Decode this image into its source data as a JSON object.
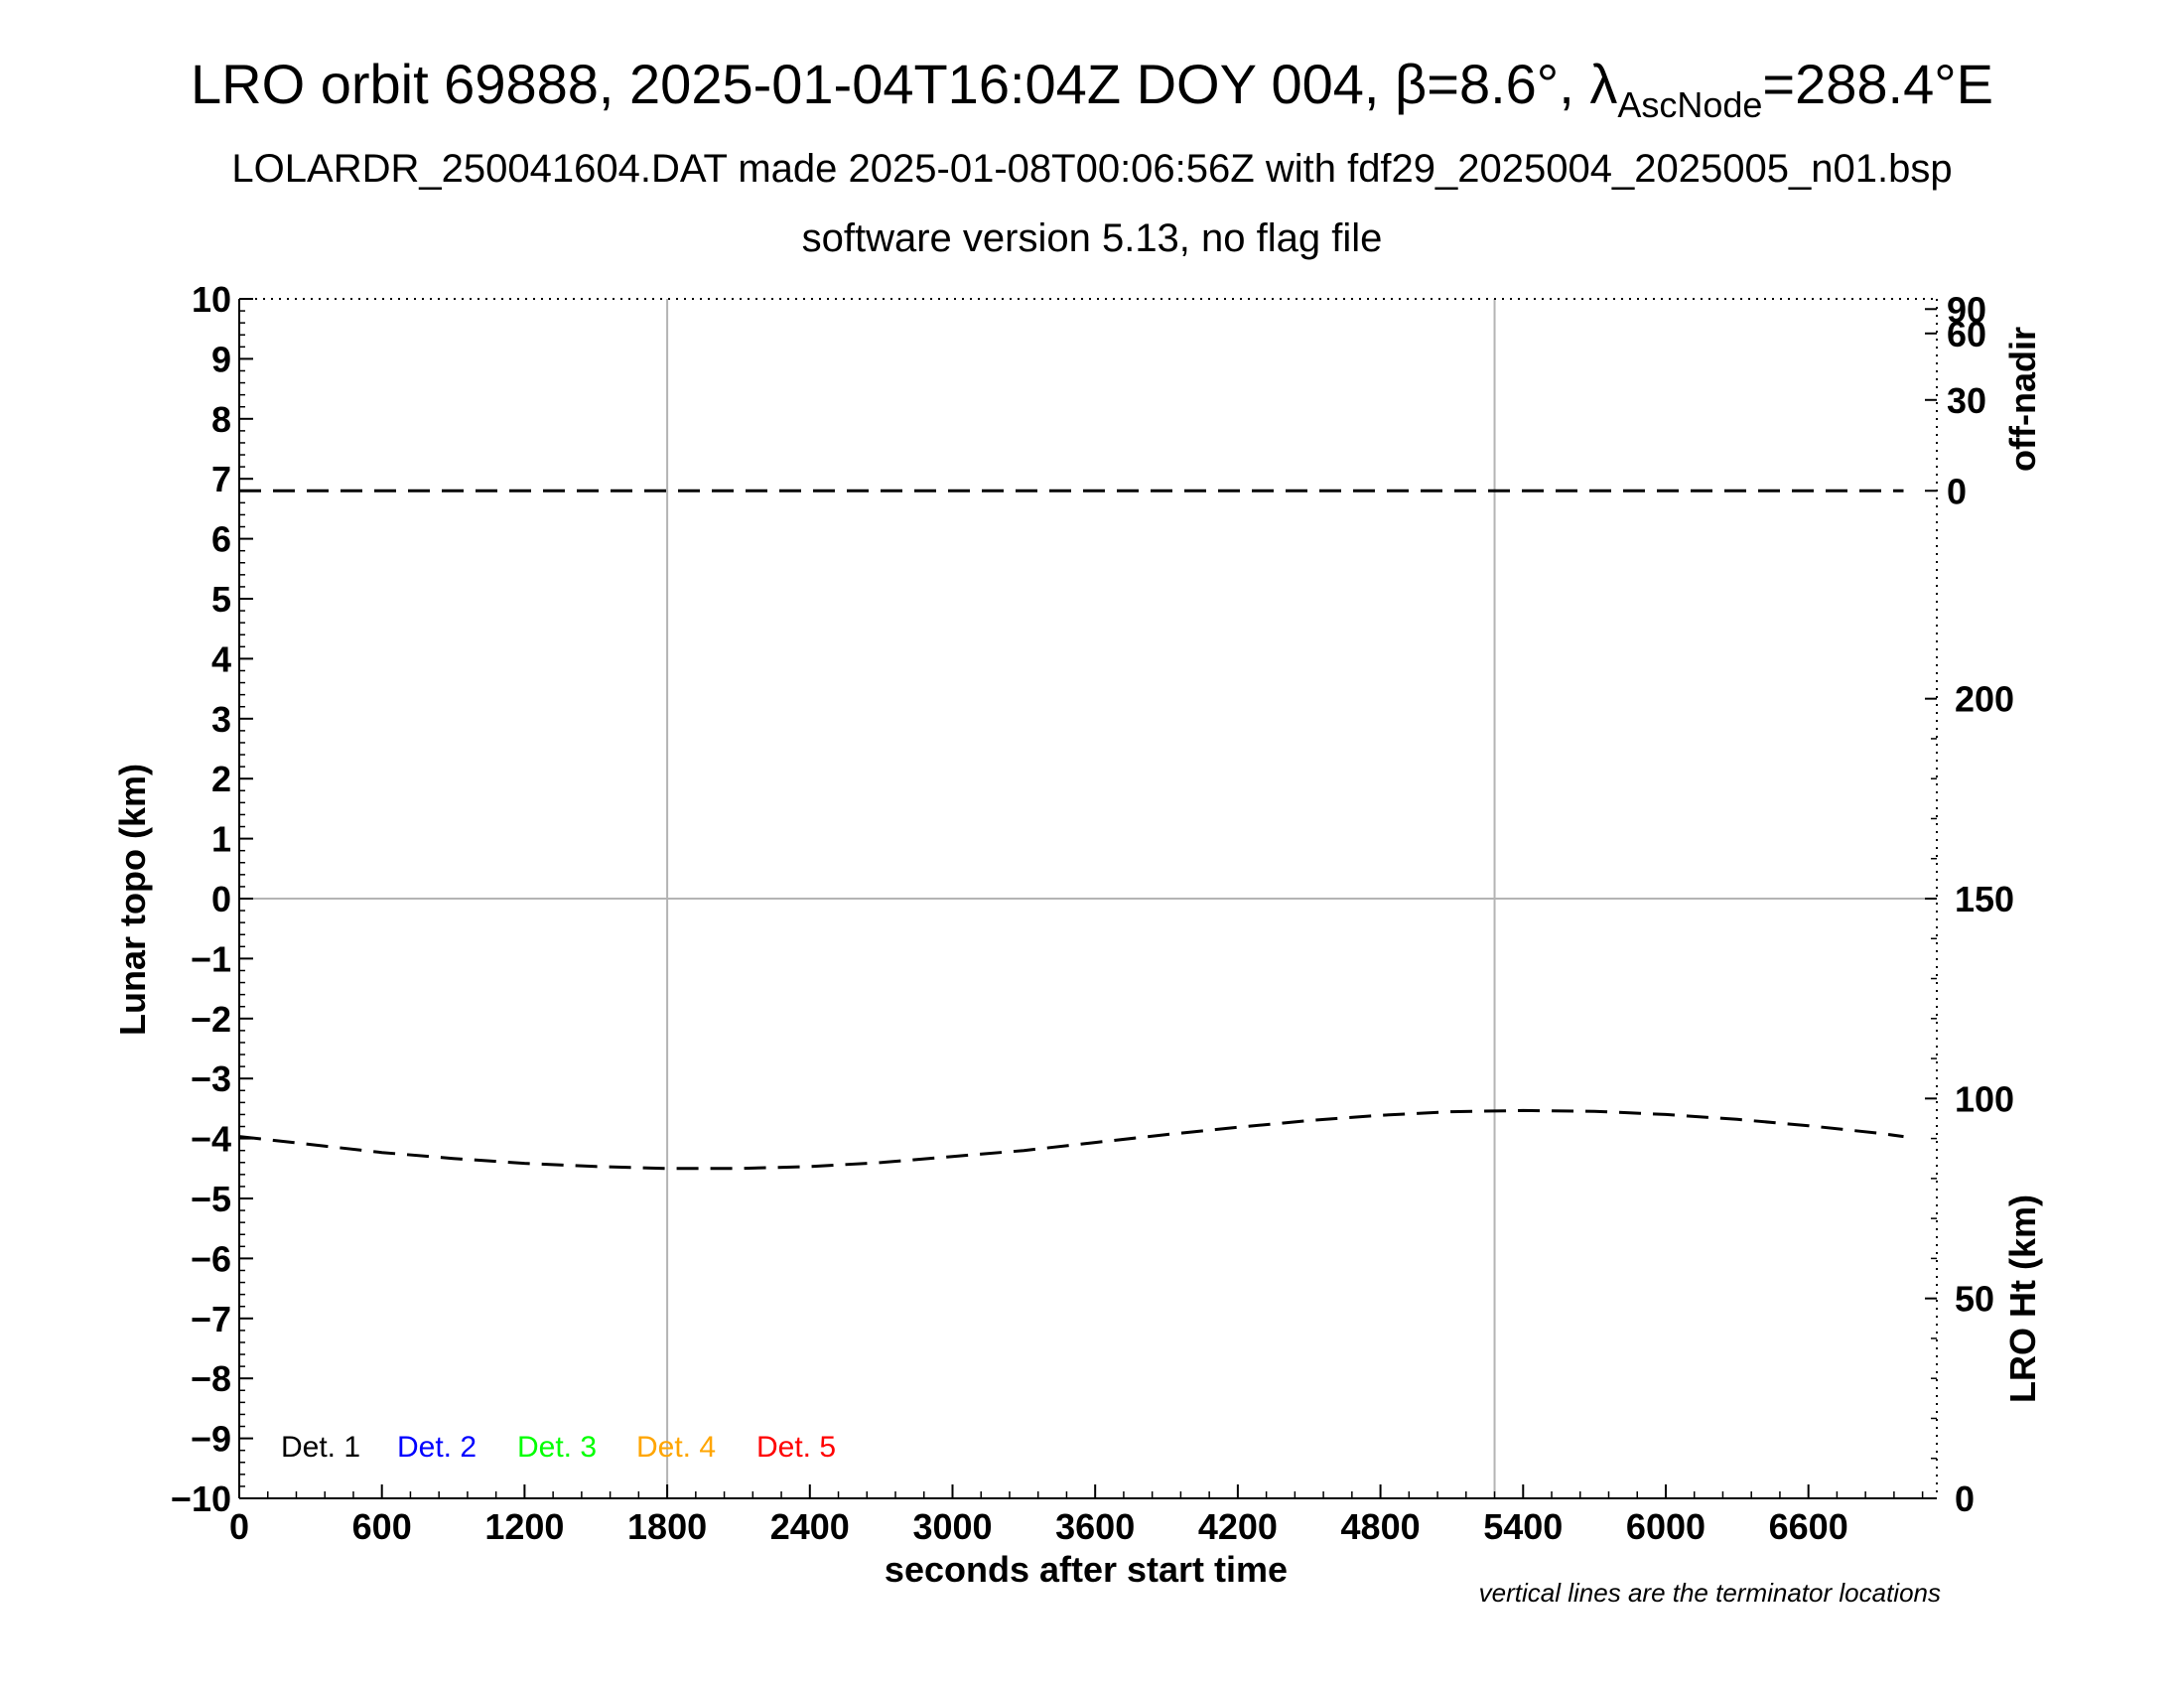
{
  "title": {
    "prefix": "LRO orbit 69888, 2025-01-04T16:04Z DOY 004, ",
    "beta": "β=8.6°, ",
    "lambda": "λ",
    "subscript": "AscNode",
    "suffix": "=288.4°E"
  },
  "subtitle": "LOLARDR_250041604.DAT made 2025-01-08T00:06:56Z with fdf29_2025004_2025005_n01.bsp",
  "subtitle2": "software version 5.13, no flag file",
  "note": "vertical lines are the terminator locations",
  "legend": [
    {
      "label": "Det. 1",
      "color": "#000000"
    },
    {
      "label": "Det. 2",
      "color": "#0000ff"
    },
    {
      "label": "Det. 3",
      "color": "#00ff00"
    },
    {
      "label": "Det. 4",
      "color": "#ffa500"
    },
    {
      "label": "Det. 5",
      "color": "#ff0000"
    }
  ],
  "chart_data": {
    "type": "line",
    "xlabel": "seconds after start time",
    "ylabel": "Lunar topo (km)",
    "xlim": [
      0,
      7140
    ],
    "ylim": [
      -10,
      10
    ],
    "xticks": [
      0,
      600,
      1200,
      1800,
      2400,
      3000,
      3600,
      4200,
      4800,
      5400,
      6000,
      6600
    ],
    "yticks": [
      10,
      9,
      8,
      7,
      6,
      5,
      4,
      3,
      2,
      1,
      0,
      -1,
      -2,
      -3,
      -4,
      -5,
      -6,
      -7,
      -8,
      -9,
      -10
    ],
    "right_axis_top": {
      "label": "off-nadir",
      "ticks": [
        90,
        60,
        30,
        0
      ]
    },
    "right_axis_bottom": {
      "label": "LRO Ht (km)",
      "range": [
        0,
        300
      ],
      "ticks": [
        200,
        150,
        100,
        50,
        0
      ]
    },
    "terminator_lines_x": [
      1800,
      5280
    ],
    "grid": false,
    "legend_position": "bottom-left",
    "series": [
      {
        "axis": "off-nadir",
        "color": "#000000",
        "style": "dashed",
        "x": [
          0,
          1000,
          2000,
          3000,
          4000,
          5000,
          6000,
          7000
        ],
        "values": [
          0,
          0,
          0,
          0,
          0,
          0,
          0,
          0
        ]
      },
      {
        "axis": "LRO Ht (km)",
        "color": "#000000",
        "style": "dashed",
        "x": [
          0,
          300,
          600,
          900,
          1200,
          1500,
          1800,
          2100,
          2400,
          2700,
          3000,
          3300,
          3600,
          3900,
          4200,
          4500,
          4800,
          5100,
          5400,
          5700,
          6000,
          6300,
          6600,
          6900,
          7000
        ],
        "values": [
          90.5,
          88.5,
          86.5,
          85.0,
          83.8,
          83.0,
          82.5,
          82.5,
          83.0,
          84.0,
          85.5,
          87.0,
          89.0,
          91.0,
          92.8,
          94.5,
          95.8,
          96.7,
          97.0,
          96.8,
          96.0,
          94.8,
          93.2,
          91.3,
          90.5
        ]
      }
    ]
  }
}
